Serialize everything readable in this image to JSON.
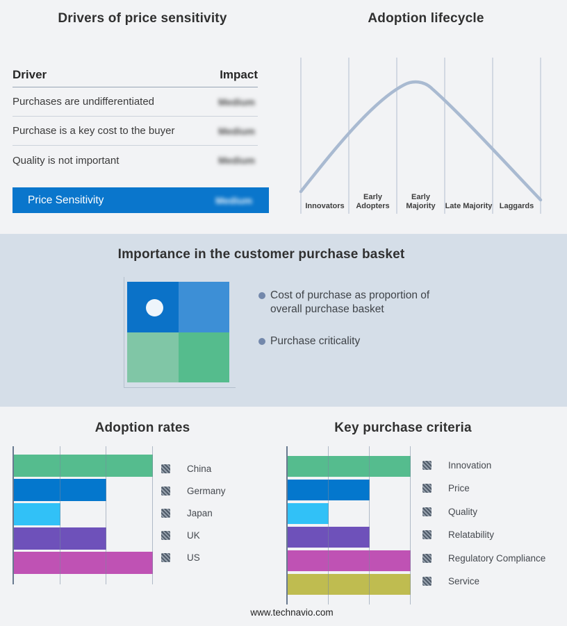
{
  "drivers_panel": {
    "title": "Drivers of price sensitivity",
    "col_driver": "Driver",
    "col_impact": "Impact",
    "rows": [
      {
        "driver": "Purchases are undifferentiated",
        "impact": "Medium",
        "impact_blurred": true
      },
      {
        "driver": "Purchase is a key cost to the buyer",
        "impact": "Medium",
        "impact_blurred": true
      },
      {
        "driver": "Quality is not important",
        "impact": "Medium",
        "impact_blurred": true
      }
    ],
    "summary": {
      "label": "Price Sensitivity",
      "impact": "Medium",
      "impact_blurred": true,
      "background": "#0a76cc"
    }
  },
  "lifecycle_panel": {
    "title": "Adoption lifecycle",
    "stages": [
      "Innovators",
      "Early Adopters",
      "Early Majority",
      "Late Majority",
      "Laggards"
    ],
    "curve_shape": "bell",
    "curve_color": "#a9bad1",
    "gridline_color": "#b2bdcf"
  },
  "basket_panel": {
    "title": "Importance in the customer purchase basket",
    "bullets": [
      "Cost of purchase as proportion of overall purchase basket",
      "Purchase criticality"
    ],
    "quadrant_colors": {
      "top_left": "#0b72c8",
      "top_right": "#3d8fd6",
      "bottom_left": "#80c6a6",
      "bottom_right": "#55bc8d"
    },
    "band_background": "#d5dee8"
  },
  "chart_data": [
    {
      "type": "bar",
      "orientation": "horizontal",
      "title": "Adoption rates",
      "categories": [
        "China",
        "Germany",
        "Japan",
        "UK",
        "US"
      ],
      "values": [
        3,
        2,
        1,
        2,
        3
      ],
      "xlim": [
        0,
        3
      ],
      "grid": true,
      "legend_position": "right",
      "colors": [
        "#55bc8e",
        "#0477cd",
        "#31c1f7",
        "#6e51ba",
        "#bf52b4"
      ]
    },
    {
      "type": "bar",
      "orientation": "horizontal",
      "title": "Key purchase criteria",
      "categories": [
        "Innovation",
        "Price",
        "Quality",
        "Relatability",
        "Regulatory Compliance",
        "Service"
      ],
      "values": [
        3,
        2,
        1,
        2,
        3,
        3
      ],
      "xlim": [
        0,
        3
      ],
      "grid": true,
      "legend_position": "right",
      "colors": [
        "#55bc8e",
        "#0477cd",
        "#31c1f7",
        "#6e51ba",
        "#bf52b4",
        "#bfbc50"
      ]
    }
  ],
  "footer": {
    "text": "www.technavio.com"
  }
}
